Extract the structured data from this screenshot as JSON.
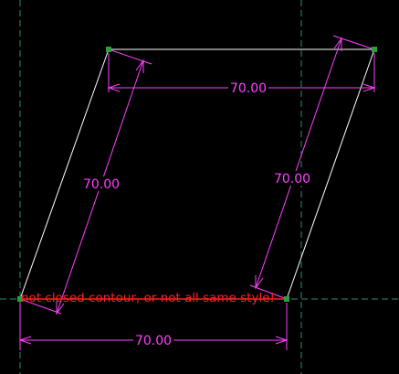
{
  "colors": {
    "background": "#000000",
    "geometry": "#ffffff",
    "dimension": "#ff40ff",
    "construction_line": "#2e8b76",
    "vertex": "#2e9e3a",
    "warning": "#ff2020"
  },
  "dimensions": {
    "top_horizontal": "70.00",
    "left_slanted": "70.00",
    "right_slanted": "70.00",
    "bottom_horizontal": "70.00"
  },
  "warning": {
    "message": "not closed contour, or not all same style!"
  }
}
